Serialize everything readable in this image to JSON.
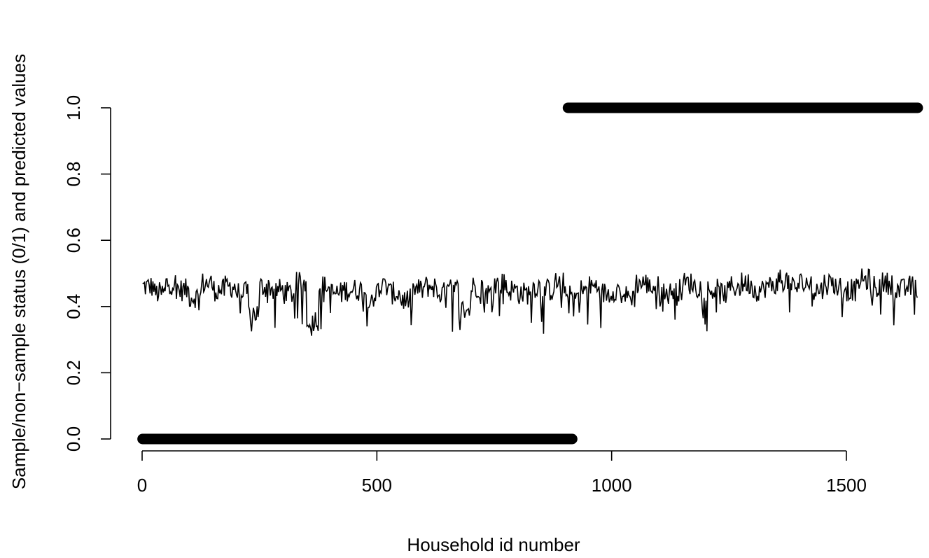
{
  "chart_data": {
    "type": "line",
    "title": "",
    "xlabel": "Household id number",
    "ylabel": "Sample/non−sample status (0/1) and predicted values",
    "xlim": [
      0,
      1652
    ],
    "ylim": [
      0,
      1
    ],
    "x_ticks": [
      0,
      500,
      1000,
      1500
    ],
    "x_tick_labels": [
      "0",
      "500",
      "1000",
      "1500"
    ],
    "y_ticks": [
      0,
      0.2,
      0.4,
      0.6,
      0.8,
      1.0
    ],
    "y_tick_labels": [
      "0.0",
      "0.2",
      "0.4",
      "0.6",
      "0.8",
      "1.0"
    ],
    "grid": false,
    "legend": "none",
    "series": [
      {
        "kind": "points",
        "description_of_values": "status 0 for households 1–916",
        "x_range": [
          1,
          916
        ],
        "y": 0
      },
      {
        "kind": "points",
        "description_of_values": "status 1 for households 907–1652",
        "x_range": [
          907,
          1652
        ],
        "y": 1
      },
      {
        "kind": "line",
        "x_step": 25,
        "x_start": 1,
        "y": [
          0.46,
          0.44,
          0.47,
          0.45,
          0.43,
          0.47,
          0.45,
          0.46,
          0.44,
          0.38,
          0.46,
          0.45,
          0.44,
          0.47,
          0.36,
          0.46,
          0.44,
          0.45,
          0.45,
          0.43,
          0.46,
          0.44,
          0.42,
          0.45,
          0.46,
          0.44,
          0.45,
          0.39,
          0.46,
          0.44,
          0.47,
          0.45,
          0.44,
          0.46,
          0.45,
          0.47,
          0.43,
          0.45,
          0.46,
          0.44,
          0.45,
          0.43,
          0.47,
          0.46,
          0.44,
          0.45,
          0.47,
          0.46,
          0.45,
          0.44,
          0.46,
          0.47,
          0.45,
          0.46,
          0.48,
          0.46,
          0.47,
          0.45,
          0.47,
          0.46,
          0.45,
          0.48,
          0.46,
          0.47,
          0.45,
          0.46,
          0.44,
          0.47
        ]
      }
    ],
    "line_min": 0.31,
    "line_max": 0.535
  }
}
